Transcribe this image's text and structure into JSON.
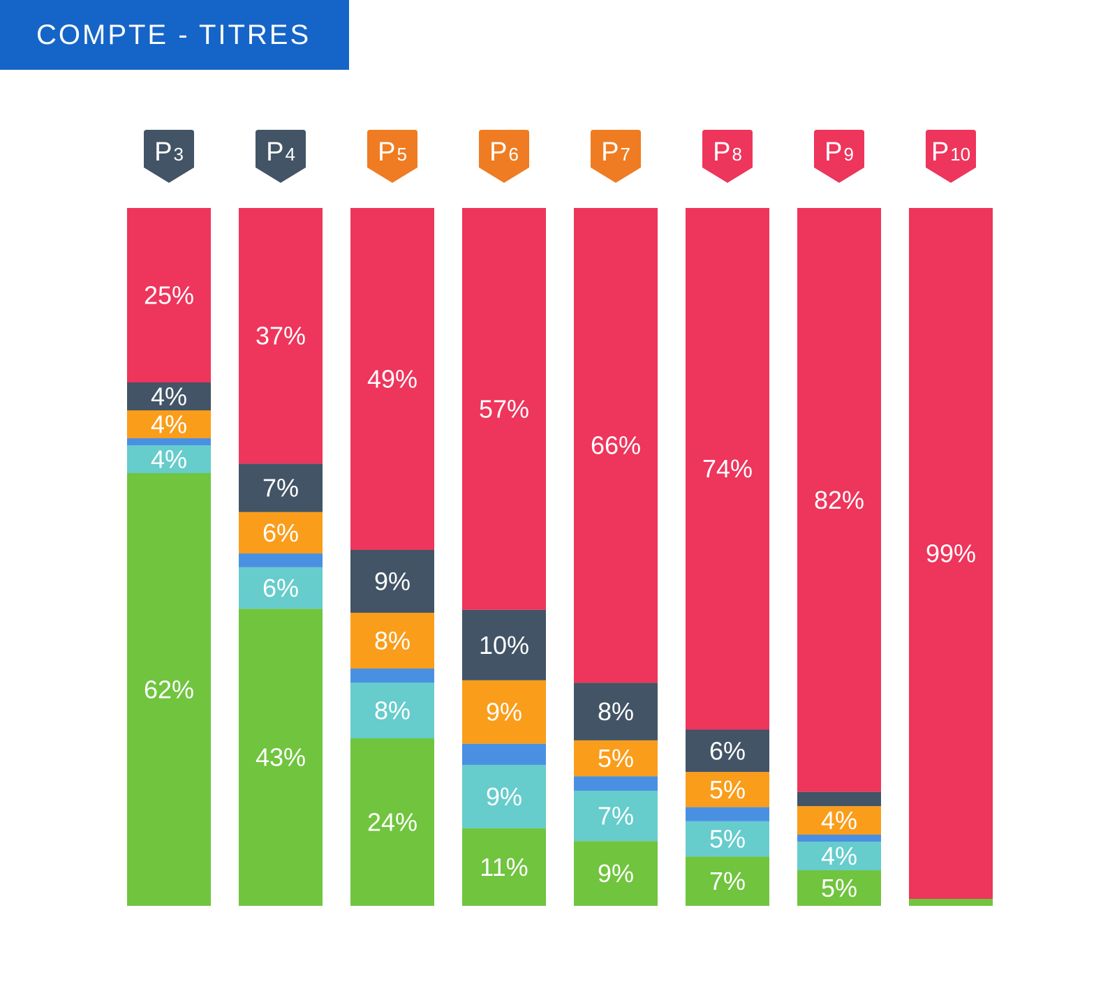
{
  "header": {
    "title": "COMPTE - TITRES"
  },
  "colors": {
    "equity": "#ee355c",
    "dark": "#425466",
    "orange": "#fa9d1b",
    "blue": "#4a90e2",
    "teal": "#66cccc",
    "green": "#70c43e",
    "badge_dark": "#425466",
    "badge_orange": "#ef7c22",
    "badge_red": "#ee355c"
  },
  "chart_data": {
    "type": "bar",
    "stacked": true,
    "normalized": true,
    "ylim": [
      0,
      100
    ],
    "categories": [
      {
        "prefix": "P",
        "sub": "3",
        "badge_color": "badge_dark"
      },
      {
        "prefix": "P",
        "sub": "4",
        "badge_color": "badge_dark"
      },
      {
        "prefix": "P",
        "sub": "5",
        "badge_color": "badge_orange"
      },
      {
        "prefix": "P",
        "sub": "6",
        "badge_color": "badge_orange"
      },
      {
        "prefix": "P",
        "sub": "7",
        "badge_color": "badge_orange"
      },
      {
        "prefix": "P",
        "sub": "8",
        "badge_color": "badge_red"
      },
      {
        "prefix": "P",
        "sub": "9",
        "badge_color": "badge_red"
      },
      {
        "prefix": "P",
        "sub": "10",
        "badge_color": "badge_red"
      }
    ],
    "series": [
      {
        "key": "green",
        "color": "green",
        "values": [
          62,
          43,
          24,
          11,
          9,
          7,
          5,
          1
        ],
        "labels": [
          "62%",
          "43%",
          "24%",
          "11%",
          "9%",
          "7%",
          "5%",
          ""
        ]
      },
      {
        "key": "teal",
        "color": "teal",
        "values": [
          4,
          6,
          8,
          9,
          7,
          5,
          4,
          0
        ],
        "labels": [
          "4%",
          "6%",
          "8%",
          "9%",
          "7%",
          "5%",
          "4%",
          ""
        ]
      },
      {
        "key": "blue",
        "color": "blue",
        "values": [
          1,
          2,
          2,
          3,
          2,
          2,
          1,
          0
        ],
        "labels": [
          "",
          "",
          "",
          "",
          "",
          "",
          "",
          ""
        ]
      },
      {
        "key": "orange",
        "color": "orange",
        "values": [
          4,
          6,
          8,
          9,
          5,
          5,
          4,
          0
        ],
        "labels": [
          "4%",
          "6%",
          "8%",
          "9%",
          "5%",
          "5%",
          "4%",
          ""
        ]
      },
      {
        "key": "dark",
        "color": "dark",
        "values": [
          4,
          7,
          9,
          10,
          8,
          6,
          2,
          0
        ],
        "labels": [
          "4%",
          "7%",
          "9%",
          "10%",
          "8%",
          "6%",
          "",
          ""
        ]
      },
      {
        "key": "red",
        "color": "equity",
        "values": [
          25,
          37,
          49,
          57,
          66,
          74,
          82,
          99
        ],
        "labels": [
          "25%",
          "37%",
          "49%",
          "57%",
          "66%",
          "74%",
          "82%",
          "99%"
        ]
      }
    ]
  }
}
